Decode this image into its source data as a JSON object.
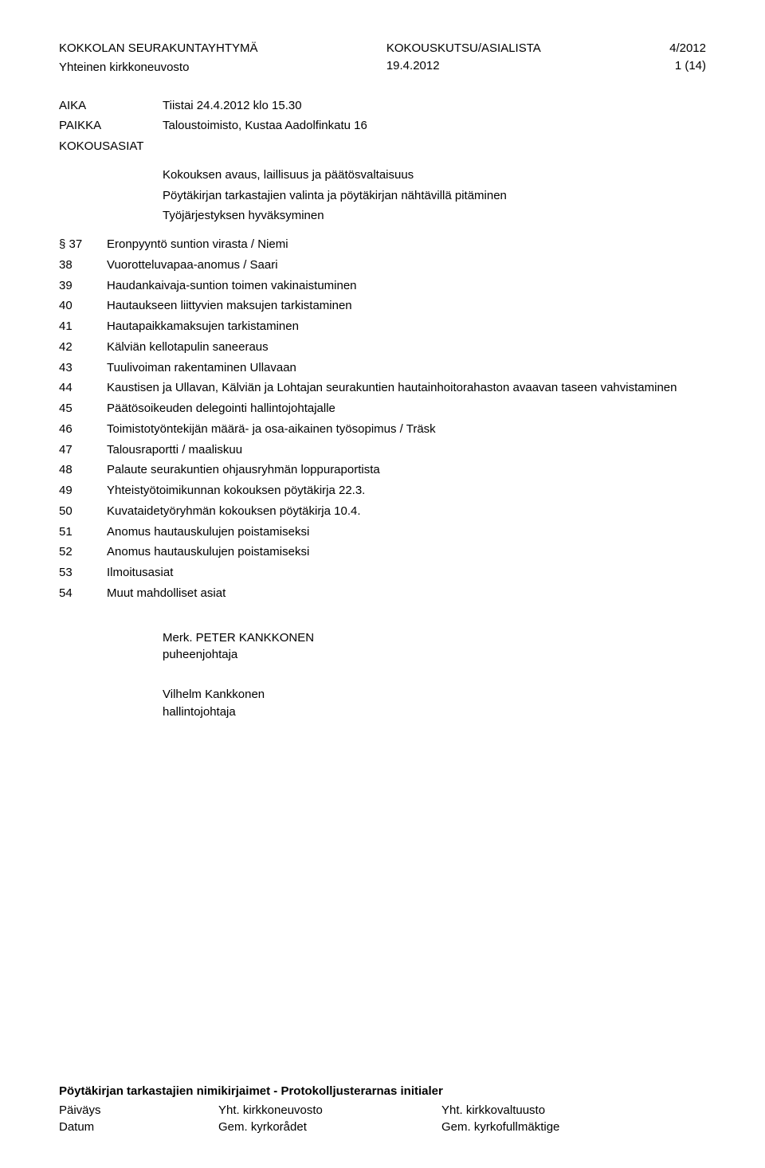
{
  "header": {
    "org_line1": "KOKKOLAN SEURAKUNTAYHTYMÄ",
    "org_line2": "Yhteinen kirkkoneuvosto",
    "doc_type": "KOKOUSKUTSU/ASIALISTA",
    "doc_date": "19.4.2012",
    "doc_num": "4/2012",
    "page_num": "1 (14)"
  },
  "meta": {
    "aika_label": "AIKA",
    "aika_value": "Tiistai 24.4.2012 klo 15.30",
    "paikka_label": "PAIKKA",
    "paikka_value": "Taloustoimisto, Kustaa Aadolfinkatu 16",
    "kokousasiat_label": "KOKOUSASIAT"
  },
  "intro": [
    "Kokouksen avaus, laillisuus ja päätösvaltaisuus",
    "Pöytäkirjan tarkastajien valinta ja pöytäkirjan nähtävillä pitäminen",
    "Työjärjestyksen hyväksyminen"
  ],
  "agenda": [
    {
      "num": "§ 37",
      "text": "Eronpyyntö suntion virasta / Niemi"
    },
    {
      "num": "38",
      "text": "Vuorotteluvapaa-anomus / Saari"
    },
    {
      "num": "39",
      "text": "Haudankaivaja-suntion toimen vakinaistuminen"
    },
    {
      "num": "40",
      "text": "Hautaukseen liittyvien maksujen tarkistaminen"
    },
    {
      "num": "41",
      "text": "Hautapaikkamaksujen tarkistaminen"
    },
    {
      "num": "42",
      "text": "Kälviän kellotapulin saneeraus"
    },
    {
      "num": "43",
      "text": "Tuulivoiman rakentaminen Ullavaan"
    },
    {
      "num": "44",
      "text": "Kaustisen ja Ullavan, Kälviän ja Lohtajan seurakuntien hautainhoitorahaston avaavan taseen vahvistaminen"
    },
    {
      "num": "45",
      "text": "Päätösoikeuden delegointi hallintojohtajalle"
    },
    {
      "num": "46",
      "text": "Toimistotyöntekijän määrä- ja osa-aikainen työsopimus / Träsk"
    },
    {
      "num": "47",
      "text": "Talousraportti / maaliskuu"
    },
    {
      "num": "48",
      "text": "Palaute seurakuntien ohjausryhmän loppuraportista"
    },
    {
      "num": "49",
      "text": "Yhteistyötoimikunnan kokouksen pöytäkirja 22.3."
    },
    {
      "num": "50",
      "text": "Kuvataidetyöryhmän kokouksen pöytäkirja 10.4."
    },
    {
      "num": "51",
      "text": "Anomus hautauskulujen poistamiseksi"
    },
    {
      "num": "52",
      "text": "Anomus hautauskulujen poistamiseksi"
    },
    {
      "num": "53",
      "text": "Ilmoitusasiat"
    },
    {
      "num": "54",
      "text": "Muut mahdolliset asiat"
    }
  ],
  "sign": {
    "merk": "Merk. PETER KANKKONEN",
    "chair_title": "puheenjohtaja",
    "admin_name": "Vilhelm Kankkonen",
    "admin_title": "hallintojohtaja"
  },
  "footer": {
    "title": "Pöytäkirjan tarkastajien nimikirjaimet - Protokolljusterarnas initialer",
    "row1": {
      "c1": "Päiväys",
      "c2": "Yht. kirkkoneuvosto",
      "c3": "Yht. kirkkovaltuusto"
    },
    "row2": {
      "c1": "Datum",
      "c2": "Gem. kyrkorådet",
      "c3": "Gem. kyrkofullmäktige"
    }
  }
}
